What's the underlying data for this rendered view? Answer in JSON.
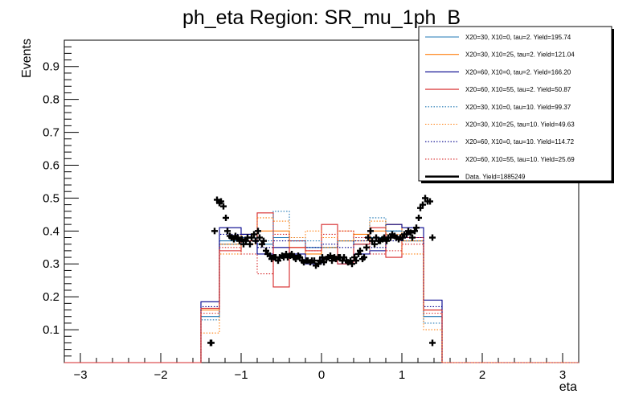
{
  "chart_data": {
    "type": "line",
    "title": "ph_eta Region: SR_mu_1ph_B",
    "xlabel": "eta",
    "ylabel": "Events",
    "xlim": [
      -3.2,
      3.2
    ],
    "ylim": [
      0,
      0.98
    ],
    "x_ticks": [
      -3,
      -2,
      -1,
      0,
      1,
      2,
      3
    ],
    "y_ticks": [
      0.1,
      0.2,
      0.3,
      0.4,
      0.5,
      0.6,
      0.7,
      0.8,
      0.9
    ],
    "legend_position": "top-right",
    "bin_edges": [
      -1.5,
      -1.27,
      -1.0,
      -0.8,
      -0.6,
      -0.4,
      -0.2,
      0.0,
      0.2,
      0.4,
      0.6,
      0.8,
      1.0,
      1.27,
      1.5
    ],
    "series": [
      {
        "name": "X20=30, X10=0, tau=2. Yield=195.74",
        "color": "#1f77b4",
        "dash": "solid",
        "values": [
          0.14,
          0.37,
          0.39,
          0.36,
          0.38,
          0.37,
          0.35,
          0.35,
          0.37,
          0.36,
          0.38,
          0.4,
          0.37,
          0.14
        ]
      },
      {
        "name": "X20=30, X10=25, tau=2. Yield=121.04",
        "color": "#ff7f0e",
        "dash": "solid",
        "values": [
          0.16,
          0.36,
          0.39,
          0.4,
          0.4,
          0.35,
          0.33,
          0.35,
          0.37,
          0.39,
          0.4,
          0.42,
          0.37,
          0.16
        ]
      },
      {
        "name": "X20=60, X10=0, tau=2. Yield=166.20",
        "color": "#00008b",
        "dash": "solid",
        "values": [
          0.185,
          0.41,
          0.39,
          0.33,
          0.35,
          0.33,
          0.3,
          0.32,
          0.3,
          0.33,
          0.34,
          0.42,
          0.41,
          0.19
        ]
      },
      {
        "name": "X20=60, X10=55, tau=2. Yield=50.87",
        "color": "#d62728",
        "dash": "solid",
        "values": [
          0.165,
          0.34,
          0.37,
          0.455,
          0.23,
          0.35,
          0.34,
          0.42,
          0.3,
          0.36,
          0.41,
          0.32,
          0.38,
          0.16
        ]
      },
      {
        "name": "X20=30, X10=0, tau=10. Yield=99.37",
        "color": "#1f77b4",
        "dash": "dotted",
        "values": [
          0.13,
          0.36,
          0.38,
          0.37,
          0.46,
          0.38,
          0.37,
          0.35,
          0.37,
          0.38,
          0.44,
          0.4,
          0.37,
          0.12
        ]
      },
      {
        "name": "X20=30, X10=25, tau=10. Yield=49.63",
        "color": "#ff7f0e",
        "dash": "dotted",
        "values": [
          0.09,
          0.33,
          0.36,
          0.44,
          0.43,
          0.38,
          0.4,
          0.38,
          0.4,
          0.37,
          0.43,
          0.39,
          0.33,
          0.1
        ]
      },
      {
        "name": "X20=60, X10=0, tau=10. Yield=114.72",
        "color": "#00008b",
        "dash": "dotted",
        "values": [
          0.17,
          0.39,
          0.38,
          0.35,
          0.37,
          0.37,
          0.35,
          0.36,
          0.35,
          0.37,
          0.35,
          0.37,
          0.38,
          0.17
        ]
      },
      {
        "name": "X20=60, X10=55, tau=10. Yield=25.69",
        "color": "#d62728",
        "dash": "dotted",
        "values": [
          0.15,
          0.35,
          0.33,
          0.27,
          0.39,
          0.37,
          0.34,
          0.39,
          0.4,
          0.38,
          0.33,
          0.34,
          0.36,
          0.15
        ]
      }
    ],
    "data_series": {
      "name": "Data. Yield=1885249",
      "color": "#000000",
      "x": [
        -1.37,
        -1.33,
        -1.3,
        -1.27,
        -1.25,
        -1.22,
        -1.19,
        -1.17,
        -1.14,
        -1.12,
        -1.09,
        -1.07,
        -1.04,
        -1.02,
        -0.99,
        -0.97,
        -0.94,
        -0.92,
        -0.89,
        -0.87,
        -0.84,
        -0.82,
        -0.79,
        -0.77,
        -0.74,
        -0.72,
        -0.69,
        -0.67,
        -0.64,
        -0.62,
        -0.59,
        -0.57,
        -0.54,
        -0.52,
        -0.49,
        -0.47,
        -0.44,
        -0.42,
        -0.39,
        -0.37,
        -0.34,
        -0.32,
        -0.29,
        -0.27,
        -0.24,
        -0.22,
        -0.19,
        -0.17,
        -0.14,
        -0.12,
        -0.09,
        -0.07,
        -0.04,
        -0.02,
        0.01,
        0.03,
        0.06,
        0.08,
        0.11,
        0.13,
        0.16,
        0.18,
        0.21,
        0.23,
        0.26,
        0.28,
        0.31,
        0.33,
        0.36,
        0.38,
        0.41,
        0.43,
        0.46,
        0.48,
        0.51,
        0.53,
        0.56,
        0.58,
        0.61,
        0.63,
        0.66,
        0.68,
        0.71,
        0.73,
        0.76,
        0.78,
        0.81,
        0.83,
        0.86,
        0.88,
        0.91,
        0.93,
        0.96,
        0.98,
        1.01,
        1.03,
        1.06,
        1.08,
        1.11,
        1.13,
        1.16,
        1.18,
        1.21,
        1.23,
        1.26,
        1.29,
        1.32,
        1.35,
        1.38
      ],
      "y": [
        0.06,
        0.4,
        0.495,
        0.485,
        0.49,
        0.475,
        0.44,
        0.4,
        0.385,
        0.38,
        0.375,
        0.385,
        0.38,
        0.37,
        0.375,
        0.36,
        0.37,
        0.38,
        0.36,
        0.38,
        0.39,
        0.37,
        0.4,
        0.38,
        0.36,
        0.37,
        0.34,
        0.33,
        0.325,
        0.315,
        0.32,
        0.32,
        0.31,
        0.32,
        0.325,
        0.32,
        0.33,
        0.32,
        0.325,
        0.33,
        0.32,
        0.315,
        0.325,
        0.32,
        0.31,
        0.305,
        0.31,
        0.31,
        0.305,
        0.31,
        0.31,
        0.295,
        0.3,
        0.31,
        0.32,
        0.305,
        0.315,
        0.32,
        0.325,
        0.31,
        0.32,
        0.315,
        0.32,
        0.32,
        0.31,
        0.32,
        0.31,
        0.305,
        0.31,
        0.3,
        0.32,
        0.31,
        0.33,
        0.34,
        0.315,
        0.32,
        0.35,
        0.38,
        0.4,
        0.37,
        0.36,
        0.38,
        0.37,
        0.37,
        0.375,
        0.38,
        0.37,
        0.38,
        0.38,
        0.39,
        0.385,
        0.38,
        0.375,
        0.38,
        0.38,
        0.39,
        0.39,
        0.4,
        0.395,
        0.38,
        0.4,
        0.41,
        0.44,
        0.47,
        0.48,
        0.5,
        0.49,
        0.49,
        0.38
      ],
      "edge_points": {
        "x": [
          -1.38,
          1.38
        ],
        "y": [
          0.06,
          0.06
        ]
      }
    }
  }
}
